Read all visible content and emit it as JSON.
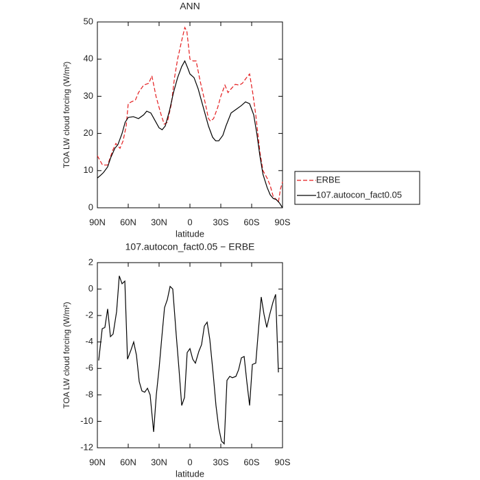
{
  "chart_data": [
    {
      "type": "line",
      "title": "ANN",
      "xlabel": "latitude",
      "ylabel": "TOA LW cloud forcing (W/m²)",
      "xlim": [
        90,
        -90
      ],
      "xticks": [
        {
          "value": 90,
          "label": "90N"
        },
        {
          "value": 60,
          "label": "60N"
        },
        {
          "value": 30,
          "label": "30N"
        },
        0,
        {
          "value": -30,
          "label": "30S"
        },
        {
          "value": -60,
          "label": "60S"
        },
        {
          "value": -90,
          "label": "90S"
        }
      ],
      "ylim": [
        0,
        50
      ],
      "yticks": [
        0,
        10,
        20,
        30,
        40,
        50
      ],
      "legend": "right",
      "series": [
        {
          "name": "ERBE",
          "color": "#e41a1c",
          "dash": "dashed",
          "x": [
            90,
            85,
            80,
            75,
            72,
            68,
            65,
            62,
            60,
            57,
            53,
            50,
            45,
            40,
            37,
            33,
            28,
            25,
            22,
            18,
            15,
            12,
            8,
            5,
            3,
            0,
            -3,
            -6,
            -10,
            -15,
            -18,
            -20,
            -23,
            -27,
            -30,
            -34,
            -37,
            -40,
            -44,
            -48,
            -51,
            -55,
            -58,
            -61,
            -64,
            -68,
            -71,
            -75,
            -78,
            -81,
            -84,
            -86,
            -88,
            -90
          ],
          "values": [
            14,
            11.5,
            11.5,
            15.5,
            17.3,
            16,
            18,
            22,
            28,
            28.5,
            29,
            31,
            33,
            33.5,
            35.5,
            30,
            25,
            22.5,
            23,
            28,
            35,
            40,
            45,
            48.5,
            47.5,
            40,
            39.5,
            39.5,
            34,
            28,
            24,
            23.3,
            24,
            27,
            30,
            33,
            31,
            32,
            33.2,
            33,
            33.5,
            35,
            36,
            31,
            25,
            15,
            10,
            8,
            6,
            3,
            2.2,
            1.5,
            5,
            7
          ]
        },
        {
          "name": "107.autocon_fact0.05",
          "color": "#000000",
          "dash": "solid",
          "x": [
            90,
            87,
            84,
            80,
            77,
            73,
            70,
            66,
            63,
            60,
            55,
            50,
            45,
            42,
            38,
            35,
            30,
            27,
            24,
            20,
            16,
            12,
            8,
            5,
            2,
            0,
            -4,
            -8,
            -13,
            -18,
            -22,
            -25,
            -28,
            -32,
            -35,
            -40,
            -45,
            -50,
            -54,
            -58,
            -62,
            -65,
            -68,
            -71,
            -75,
            -78,
            -81,
            -84,
            -87,
            -90
          ],
          "values": [
            8,
            8.7,
            9.5,
            11,
            13.5,
            16,
            17,
            20,
            23,
            24.3,
            24.5,
            24,
            25,
            26,
            25.5,
            24,
            21.5,
            21,
            22,
            26,
            31,
            35,
            38,
            39.5,
            37.5,
            36,
            35,
            32,
            27,
            22,
            19,
            18,
            18,
            19.5,
            22,
            25.5,
            26.5,
            27.5,
            28.5,
            28,
            25,
            20,
            14,
            9,
            5.5,
            3.5,
            2.5,
            2.2,
            1.3,
            0
          ]
        }
      ]
    },
    {
      "type": "line",
      "title": "107.autocon_fact0.05 − ERBE",
      "xlabel": "latitude",
      "ylabel": "TOA LW cloud forcing (W/m²)",
      "xlim": [
        90,
        -90
      ],
      "xticks": [
        {
          "value": 90,
          "label": "90N"
        },
        {
          "value": 60,
          "label": "60N"
        },
        {
          "value": 30,
          "label": "30N"
        },
        0,
        {
          "value": -30,
          "label": "30S"
        },
        {
          "value": -60,
          "label": "60S"
        },
        {
          "value": -90,
          "label": "90S"
        }
      ],
      "ylim": [
        -12,
        2
      ],
      "yticks": [
        -12,
        -10,
        -8,
        -6,
        -4,
        -2,
        0,
        2
      ],
      "series": [
        {
          "color": "#000000",
          "dash": "solid",
          "x": [
            88.7,
            85.3,
            82.7,
            80,
            77.3,
            74.7,
            71.3,
            68.7,
            66,
            63.3,
            60.7,
            57.3,
            54.7,
            52,
            49.3,
            46.7,
            44,
            41.3,
            38.7,
            35.3,
            32.7,
            30,
            27.3,
            24.7,
            22,
            19.3,
            16.7,
            13.3,
            10.7,
            8,
            5.3,
            2.7,
            0,
            -2.7,
            -5.3,
            -8.7,
            -11.3,
            -14,
            -16.7,
            -19.3,
            -22.7,
            -25.3,
            -28,
            -30.7,
            -33.3,
            -36,
            -38.7,
            -41.3,
            -44.7,
            -47.3,
            -50,
            -52.7,
            -55.3,
            -58,
            -60.7,
            -64,
            -66.7,
            -69.3,
            -72,
            -74.7,
            -77.3,
            -80.7,
            -83.3,
            -86
          ],
          "values": [
            -5.4,
            -3,
            -2.9,
            -1.5,
            -3.6,
            -3.4,
            -1.7,
            1,
            0.4,
            0.6,
            -5.3,
            -4.6,
            -4,
            -5,
            -7,
            -7.7,
            -7.8,
            -7.5,
            -8,
            -10.8,
            -8,
            -6,
            -3.6,
            -1.4,
            -0.8,
            0.2,
            0,
            -3.5,
            -6,
            -8.8,
            -8.2,
            -4.8,
            -4.5,
            -5.3,
            -5.6,
            -4.7,
            -4.2,
            -2.8,
            -2.5,
            -3.8,
            -6.5,
            -8.8,
            -10.5,
            -11.5,
            -11.7,
            -6.9,
            -6.6,
            -6.7,
            -6.6,
            -6.1,
            -5.2,
            -5.1,
            -7,
            -8.8,
            -5.7,
            -5.6,
            -3,
            -0.6,
            -1.9,
            -2.9,
            -2,
            -1,
            -0.4,
            -6.3
          ]
        }
      ]
    }
  ]
}
